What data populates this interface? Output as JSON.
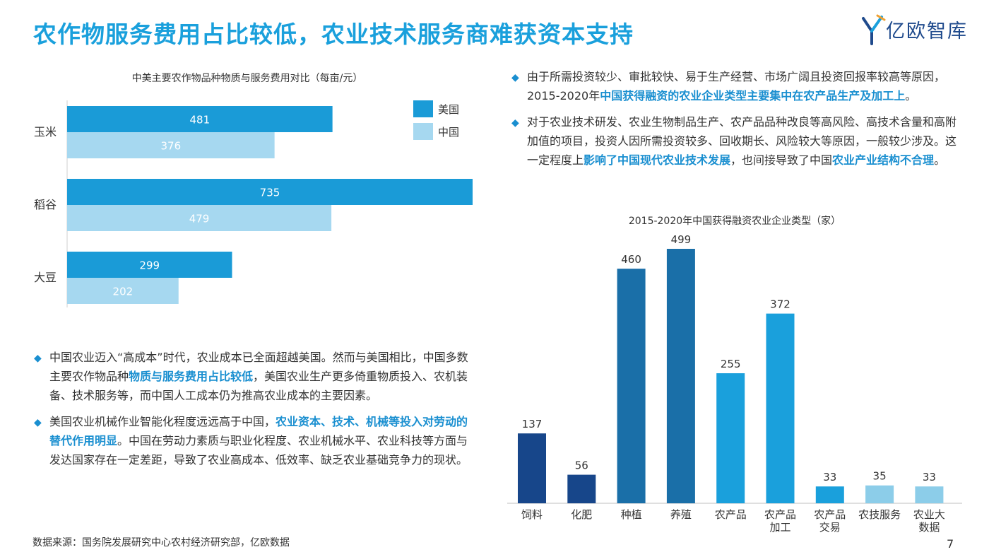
{
  "title": "农作物服务费用占比较低，农业技术服务商难获资本支持",
  "logo_text": "亿欧智库",
  "colors": {
    "title": "#1aa0dc",
    "usa": "#1a9bd7",
    "china": "#a6d8f0",
    "highlight": "#1a8fd0",
    "c2_feed": "#17468a",
    "c2_plant": "#1a6fa8",
    "c2_mid": "#1aa0dc",
    "c2_light": "#8ccde9"
  },
  "chart_data": [
    {
      "type": "bar",
      "orientation": "horizontal",
      "title": "中美主要农作物品种物质与服务费用对比（每亩/元）",
      "categories": [
        "玉米",
        "稻谷",
        "大豆"
      ],
      "series": [
        {
          "name": "美国",
          "values": [
            481,
            735,
            299
          ]
        },
        {
          "name": "中国",
          "values": [
            376,
            479,
            202
          ]
        }
      ],
      "xlim": [
        0,
        735
      ],
      "legend": "top-right",
      "grid": false
    },
    {
      "type": "bar",
      "title": "2015-2020年中国获得融资农业企业类型（家）",
      "categories": [
        "饲料",
        "化肥",
        "种植",
        "养殖",
        "农产品",
        "农产品加工",
        "农产品交易",
        "农技服务",
        "农业大数据"
      ],
      "category_lines": [
        [
          "饲料"
        ],
        [
          "化肥"
        ],
        [
          "种植"
        ],
        [
          "养殖"
        ],
        [
          "农产品"
        ],
        [
          "农产品",
          "加工"
        ],
        [
          "农产品",
          "交易"
        ],
        [
          "农技服务"
        ],
        [
          "农业大",
          "数据"
        ]
      ],
      "values": [
        137,
        56,
        460,
        499,
        255,
        372,
        33,
        35,
        33
      ],
      "colors": [
        "#17468a",
        "#17468a",
        "#1a6fa8",
        "#1a6fa8",
        "#1aa0dc",
        "#1aa0dc",
        "#1aa0dc",
        "#8ccde9",
        "#8ccde9"
      ],
      "ylim": [
        0,
        499
      ],
      "grid": false
    }
  ],
  "left_bullets": [
    {
      "segments": [
        {
          "text": "中国农业迈入“高成本”时代，农业成本已全面超越美国。然而与美国相比，中国多数主要农作物品种",
          "hl": false
        },
        {
          "text": "物质与服务费用占比较低",
          "hl": true
        },
        {
          "text": "，美国农业生产更多倚重物质投入、农机装备、技术服务等，而中国人工成本仍为推高农业成本的主要因素。",
          "hl": false
        }
      ]
    },
    {
      "segments": [
        {
          "text": "美国农业机械作业智能化程度远远高于中国，",
          "hl": false
        },
        {
          "text": "农业资本、技术、机械等投入对劳动的替代作用明显",
          "hl": true
        },
        {
          "text": "。中国在劳动力素质与职业化程度、农业机械水平、农业科技等方面与发达国家存在一定差距，导致了农业高成本、低效率、缺乏农业基础竞争力的现状。",
          "hl": false
        }
      ]
    }
  ],
  "right_bullets": [
    {
      "segments": [
        {
          "text": "由于所需投资较少、审批较快、易于生产经营、市场广阔且投资回报率较高等原因，2015-2020年",
          "hl": false
        },
        {
          "text": "中国获得融资的农业企业类型主要集中在农产品生产及加工上",
          "hl": true
        },
        {
          "text": "。",
          "hl": false
        }
      ]
    },
    {
      "segments": [
        {
          "text": "对于农业技术研发、农业生物制品生产、农产品品种改良等高风险、高技术含量和高附加值的项目，投资人因所需投资较多、回收期长、风险较大等原因，一般较少涉及。这一定程度上",
          "hl": false
        },
        {
          "text": "影响了中国现代农业技术发展",
          "hl": true
        },
        {
          "text": "，也间接导致了中国",
          "hl": false
        },
        {
          "text": "农业产业结构不合理",
          "hl": true
        },
        {
          "text": "。",
          "hl": false
        }
      ]
    }
  ],
  "source": "数据来源：国务院发展研究中心农村经济研究部，亿欧数据",
  "page_number": "7"
}
